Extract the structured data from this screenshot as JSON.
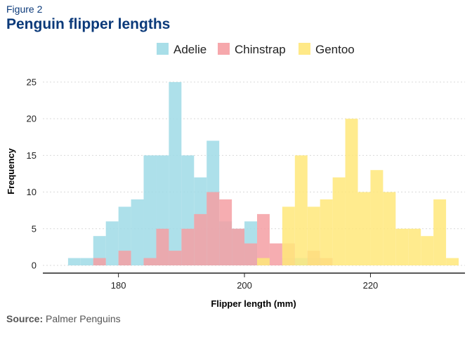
{
  "header": {
    "kicker": "Figure 2",
    "title": "Penguin flipper lengths"
  },
  "footer": {
    "source_label": "Source:",
    "source_text": "Palmer Penguins"
  },
  "chart_data": {
    "type": "histogram",
    "title": "Penguin flipper lengths",
    "xlabel": "Flipper length (mm)",
    "ylabel": "Frequency",
    "xlim": [
      168,
      235
    ],
    "ylim": [
      0,
      27
    ],
    "x_ticks": [
      180,
      200,
      220
    ],
    "y_ticks": [
      0,
      5,
      10,
      15,
      20,
      25
    ],
    "grid": "horizontal dotted",
    "legend_position": "top",
    "bin_width": 2,
    "series": [
      {
        "name": "Adelie",
        "color": "#9fdae6",
        "bins": [
          [
            172,
            1
          ],
          [
            174,
            1
          ],
          [
            176,
            4
          ],
          [
            178,
            6
          ],
          [
            180,
            8
          ],
          [
            182,
            9
          ],
          [
            184,
            15
          ],
          [
            186,
            15
          ],
          [
            188,
            25
          ],
          [
            190,
            15
          ],
          [
            192,
            12
          ],
          [
            194,
            17
          ],
          [
            196,
            6
          ],
          [
            198,
            5
          ],
          [
            200,
            6
          ],
          [
            202,
            1
          ],
          [
            206,
            1
          ],
          [
            208,
            1
          ],
          [
            210,
            1
          ]
        ]
      },
      {
        "name": "Chinstrap",
        "color": "#f59fa3",
        "bins": [
          [
            176,
            1
          ],
          [
            180,
            2
          ],
          [
            184,
            1
          ],
          [
            186,
            5
          ],
          [
            188,
            2
          ],
          [
            190,
            5
          ],
          [
            192,
            7
          ],
          [
            194,
            10
          ],
          [
            196,
            9
          ],
          [
            198,
            5
          ],
          [
            200,
            3
          ],
          [
            202,
            7
          ],
          [
            204,
            3
          ],
          [
            206,
            3
          ],
          [
            210,
            2
          ],
          [
            212,
            1
          ]
        ]
      },
      {
        "name": "Gentoo",
        "color": "#ffe77a",
        "bins": [
          [
            202,
            1
          ],
          [
            206,
            8
          ],
          [
            208,
            15
          ],
          [
            210,
            8
          ],
          [
            212,
            9
          ],
          [
            214,
            12
          ],
          [
            216,
            20
          ],
          [
            218,
            10
          ],
          [
            220,
            13
          ],
          [
            222,
            10
          ],
          [
            224,
            5
          ],
          [
            226,
            5
          ],
          [
            228,
            4
          ],
          [
            230,
            9
          ],
          [
            232,
            1
          ]
        ]
      }
    ]
  }
}
